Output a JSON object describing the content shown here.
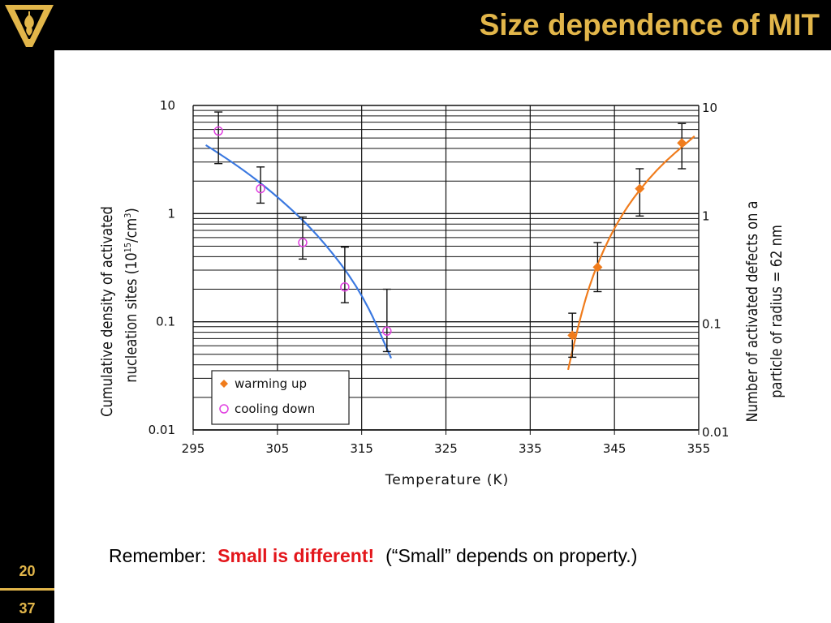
{
  "slide": {
    "title": "Size dependence of MIT",
    "slide_number_top": "20",
    "slide_number_bottom": "37",
    "caption_lead": "Remember:",
    "caption_emphasis": "Small is different!",
    "caption_tail": "(“Small” depends on property.)",
    "accent_color": "#e2b64a",
    "emphasis_color": "#e3161b"
  },
  "chart_data": {
    "type": "scatter",
    "xlabel": "Temperature (K)",
    "ylabel_left_line1": "Cumulative density of activated",
    "ylabel_left_line2_pre": "nucleation sites (10",
    "ylabel_left_line2_sup1": "15",
    "ylabel_left_line2_mid": "/cm",
    "ylabel_left_line2_sup2": "3",
    "ylabel_left_line2_post": ")",
    "ylabel_right_line1": "Number of activated defects on a",
    "ylabel_right_line2": "particle of radius = 62 nm",
    "x_ticks": [
      "295",
      "305",
      "315",
      "325",
      "335",
      "345",
      "355"
    ],
    "y_ticks": [
      "10",
      "1",
      "0.1",
      "0.01"
    ],
    "xlim": [
      295,
      355
    ],
    "ylim": [
      0.01,
      10
    ],
    "y_scale": "log",
    "grid": true,
    "legend_position": "bottom-left",
    "series": [
      {
        "name": "warming up",
        "marker": "diamond",
        "color": "#f07c1c",
        "x": [
          340,
          343,
          348,
          353
        ],
        "y": [
          0.075,
          0.32,
          1.7,
          4.5
        ],
        "err_low": [
          0.047,
          0.19,
          0.95,
          2.6
        ],
        "err_high": [
          0.12,
          0.54,
          2.6,
          6.8
        ]
      },
      {
        "name": "cooling down",
        "marker": "circle",
        "color": "#e040e0",
        "x": [
          298,
          303,
          308,
          313,
          318
        ],
        "y": [
          5.8,
          1.7,
          0.54,
          0.21,
          0.082
        ],
        "err_low": [
          2.9,
          1.25,
          0.38,
          0.15,
          0.053
        ],
        "err_high": [
          8.7,
          2.7,
          0.93,
          0.49,
          0.2
        ]
      }
    ],
    "fit_curves": [
      {
        "color": "#3a78e0",
        "x": [
          296.5,
          300,
          305,
          310,
          315,
          318.5
        ],
        "y": [
          4.3,
          2.9,
          1.45,
          0.62,
          0.19,
          0.046
        ]
      },
      {
        "color": "#f07c1c",
        "x": [
          339.5,
          341,
          343,
          346,
          350,
          354.5
        ],
        "y": [
          0.036,
          0.12,
          0.36,
          1.05,
          2.6,
          5.2
        ]
      }
    ]
  }
}
